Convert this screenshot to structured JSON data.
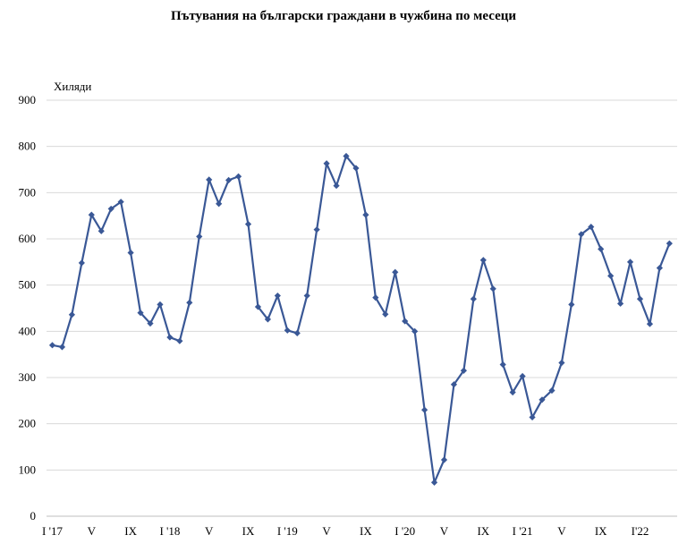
{
  "chart_data": {
    "type": "line",
    "title": "Пътувания на български граждани в чужбина по месеци",
    "unit_label": "Хиляди",
    "ylim": [
      0,
      900
    ],
    "y_ticks": [
      0,
      100,
      200,
      300,
      400,
      500,
      600,
      700,
      800,
      900
    ],
    "grid": true,
    "legend": "none",
    "series_color": "#3a5896",
    "x_tick_labels": [
      {
        "index": 0,
        "label": "I '17"
      },
      {
        "index": 4,
        "label": "V"
      },
      {
        "index": 8,
        "label": "IX"
      },
      {
        "index": 12,
        "label": "I '18"
      },
      {
        "index": 16,
        "label": "V"
      },
      {
        "index": 20,
        "label": "IX"
      },
      {
        "index": 24,
        "label": "I '19"
      },
      {
        "index": 28,
        "label": "V"
      },
      {
        "index": 32,
        "label": "IX"
      },
      {
        "index": 36,
        "label": "I '20"
      },
      {
        "index": 40,
        "label": "V"
      },
      {
        "index": 44,
        "label": "IX"
      },
      {
        "index": 48,
        "label": "I '21"
      },
      {
        "index": 52,
        "label": "V"
      },
      {
        "index": 56,
        "label": "IX"
      },
      {
        "index": 60,
        "label": "I'22"
      }
    ],
    "series": [
      {
        "values": [
          370,
          366,
          436,
          548,
          652,
          617,
          665,
          680,
          570,
          440,
          417,
          458,
          387,
          379,
          462,
          605,
          728,
          676,
          727,
          735,
          632,
          453,
          426,
          477,
          402,
          396,
          477,
          620,
          763,
          715,
          779,
          753,
          652,
          473,
          437,
          528,
          422,
          400,
          230,
          73,
          122,
          285,
          315,
          470,
          554,
          492,
          328,
          268,
          303,
          214,
          252,
          272,
          332,
          458,
          610,
          626,
          578,
          520,
          460,
          550,
          470,
          416,
          537,
          590
        ]
      }
    ]
  }
}
